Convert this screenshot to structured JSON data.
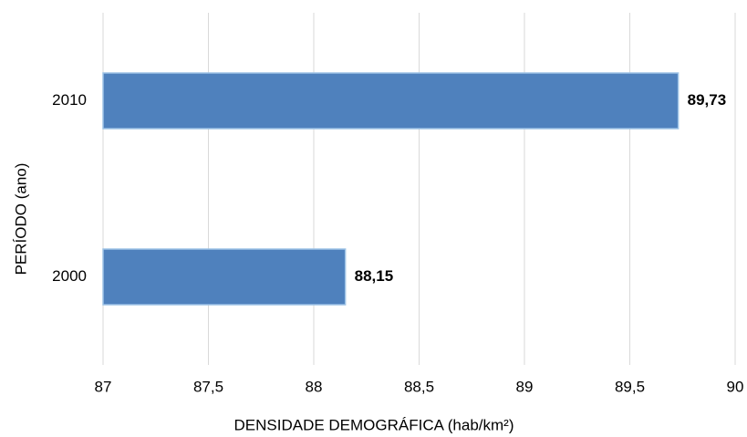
{
  "chart_data": {
    "type": "bar",
    "orientation": "horizontal",
    "categories": [
      "2010",
      "2000"
    ],
    "values": [
      89.73,
      88.15
    ],
    "value_labels": [
      "89,73",
      "88,15"
    ],
    "color": "#4f81bd",
    "xlim": [
      87,
      90
    ],
    "xticks": [
      87,
      {
        "value": 87.5,
        "label": "87,5"
      },
      88,
      {
        "value": 88.5,
        "label": "88,5"
      },
      89,
      {
        "value": 89.5,
        "label": "89,5"
      },
      90
    ],
    "grid": true,
    "xlabel": "DENSIDADE DEMOGRÁFICA (hab/km²)",
    "ylabel": "PERÍODO (ano)"
  }
}
